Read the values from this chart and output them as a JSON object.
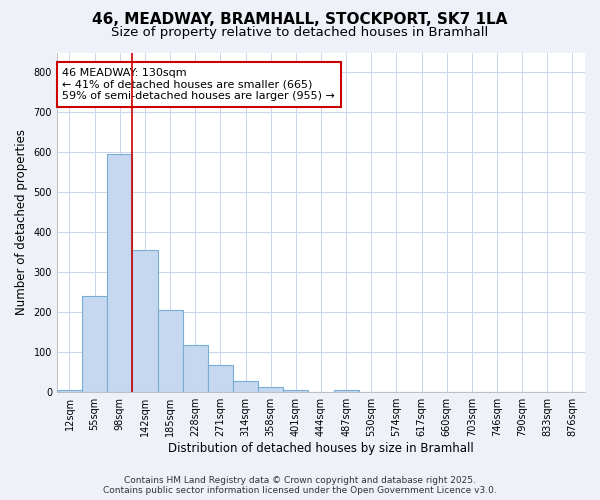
{
  "title": "46, MEADWAY, BRAMHALL, STOCKPORT, SK7 1LA",
  "subtitle": "Size of property relative to detached houses in Bramhall",
  "xlabel": "Distribution of detached houses by size in Bramhall",
  "ylabel": "Number of detached properties",
  "categories": [
    "12sqm",
    "55sqm",
    "98sqm",
    "142sqm",
    "185sqm",
    "228sqm",
    "271sqm",
    "314sqm",
    "358sqm",
    "401sqm",
    "444sqm",
    "487sqm",
    "530sqm",
    "574sqm",
    "617sqm",
    "660sqm",
    "703sqm",
    "746sqm",
    "790sqm",
    "833sqm",
    "876sqm"
  ],
  "values": [
    5,
    240,
    596,
    355,
    205,
    118,
    68,
    28,
    14,
    5,
    0,
    5,
    0,
    0,
    0,
    0,
    0,
    0,
    0,
    0,
    0
  ],
  "bar_color": "#c5d8f0",
  "bar_edge_color": "#7aadd4",
  "vline_x_index": 2,
  "vline_color": "#cc0000",
  "annotation_text": "46 MEADWAY: 130sqm\n← 41% of detached houses are smaller (665)\n59% of semi-detached houses are larger (955) →",
  "annotation_box_color": "white",
  "annotation_box_edge_color": "#cc0000",
  "ylim": [
    0,
    850
  ],
  "yticks": [
    0,
    100,
    200,
    300,
    400,
    500,
    600,
    700,
    800
  ],
  "grid_color": "#c8d4e8",
  "plot_bg_color": "#ffffff",
  "fig_bg_color": "#eef2f8",
  "footer_line1": "Contains HM Land Registry data © Crown copyright and database right 2025.",
  "footer_line2": "Contains public sector information licensed under the Open Government Licence v3.0.",
  "title_fontsize": 11,
  "subtitle_fontsize": 9.5,
  "xlabel_fontsize": 8.5,
  "ylabel_fontsize": 8.5,
  "tick_fontsize": 7,
  "annotation_fontsize": 8,
  "footer_fontsize": 6.5
}
